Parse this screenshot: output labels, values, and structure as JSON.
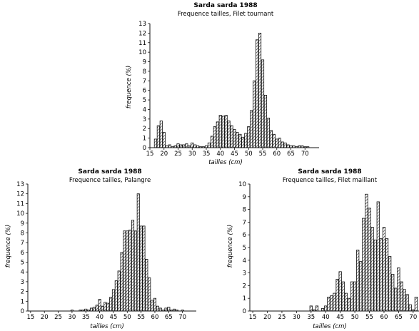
{
  "chart_data": [
    {
      "type": "bar",
      "title": "Sarda sarda 1988",
      "subtitle": "Frequence tailles, Filet tournant",
      "xlabel": "tailles (cm)",
      "ylabel": "frequence (%)",
      "xlim": [
        15,
        75
      ],
      "ylim": [
        0,
        13
      ],
      "xticks": [
        15,
        20,
        25,
        30,
        35,
        40,
        45,
        50,
        55,
        60,
        65,
        70
      ],
      "yticks": [
        0,
        1,
        2,
        3,
        4,
        5,
        6,
        7,
        8,
        9,
        10,
        11,
        12,
        13
      ],
      "x": [
        17,
        18,
        19,
        20,
        21,
        22,
        23,
        24,
        25,
        26,
        27,
        28,
        29,
        30,
        31,
        32,
        33,
        34,
        35,
        36,
        37,
        38,
        39,
        40,
        41,
        42,
        43,
        44,
        45,
        46,
        47,
        48,
        49,
        50,
        51,
        52,
        53,
        54,
        55,
        56,
        57,
        58,
        59,
        60,
        61,
        62,
        63,
        64,
        65,
        66,
        67,
        68,
        69,
        70,
        71
      ],
      "values": [
        0.9,
        2.3,
        2.8,
        1.6,
        0.2,
        0.3,
        0.1,
        0.2,
        0.4,
        0.3,
        0.3,
        0.4,
        0.2,
        0.5,
        0.3,
        0.2,
        0.1,
        0.1,
        0.2,
        0.5,
        1.2,
        2.2,
        2.7,
        3.4,
        3.3,
        3.4,
        2.8,
        2.3,
        1.9,
        1.6,
        1.4,
        1.1,
        1.5,
        2.2,
        3.9,
        7.0,
        11.3,
        12.0,
        9.2,
        5.5,
        3.1,
        1.8,
        1.4,
        0.9,
        1.0,
        0.6,
        0.5,
        0.3,
        0.2,
        0.2,
        0.1,
        0.2,
        0.2,
        0.1,
        0.1
      ]
    },
    {
      "type": "bar",
      "title": "Sarda sarda 1988",
      "subtitle": "Frequence tailles, Palangre",
      "xlabel": "tailles (cm)",
      "ylabel": "frequence (%)",
      "xlim": [
        14,
        75
      ],
      "ylim": [
        0,
        13
      ],
      "xticks": [
        15,
        20,
        25,
        30,
        35,
        40,
        45,
        50,
        55,
        60,
        65,
        70
      ],
      "yticks": [
        0,
        1,
        2,
        3,
        4,
        5,
        6,
        7,
        8,
        9,
        10,
        11,
        12,
        13
      ],
      "x": [
        30,
        33,
        34,
        35,
        36,
        37,
        38,
        39,
        40,
        41,
        42,
        43,
        44,
        45,
        46,
        47,
        48,
        49,
        50,
        51,
        52,
        53,
        54,
        55,
        56,
        57,
        58,
        59,
        60,
        61,
        62,
        63,
        64,
        65,
        66,
        67,
        68,
        70
      ],
      "values": [
        0.1,
        0.1,
        0.1,
        0.2,
        0.1,
        0.3,
        0.4,
        0.6,
        1.2,
        0.5,
        0.9,
        0.8,
        1.4,
        2.2,
        3.1,
        4.1,
        6.0,
        8.2,
        8.2,
        8.3,
        9.3,
        8.2,
        12.0,
        8.7,
        8.7,
        5.3,
        3.4,
        1.1,
        1.3,
        0.5,
        0.3,
        0.1,
        0.3,
        0.4,
        0.1,
        0.2,
        0.1,
        0.1
      ]
    },
    {
      "type": "bar",
      "title": "Sarda sarda 1988",
      "subtitle": "Frequence tailles, Filet maillant",
      "xlabel": "tailles (cm)",
      "ylabel": "frequence (%)",
      "xlim": [
        14,
        72
      ],
      "ylim": [
        0,
        10
      ],
      "xticks": [
        15,
        20,
        25,
        30,
        35,
        40,
        45,
        50,
        55,
        60,
        65,
        70
      ],
      "yticks": [
        0,
        1,
        2,
        3,
        4,
        5,
        6,
        7,
        8,
        9,
        10
      ],
      "x": [
        35,
        36,
        37,
        38,
        39,
        40,
        41,
        42,
        43,
        44,
        45,
        46,
        47,
        48,
        49,
        50,
        51,
        52,
        53,
        54,
        55,
        56,
        57,
        58,
        59,
        60,
        61,
        62,
        63,
        64,
        65,
        66,
        67,
        68,
        69,
        70,
        71
      ],
      "values": [
        0.4,
        0.1,
        0.4,
        0.0,
        0.2,
        0.4,
        1.1,
        1.2,
        1.4,
        2.5,
        3.1,
        2.3,
        1.4,
        1.0,
        2.3,
        2.3,
        4.8,
        3.9,
        7.3,
        9.2,
        8.1,
        6.6,
        5.6,
        8.6,
        5.7,
        6.6,
        5.7,
        4.3,
        2.9,
        1.8,
        3.4,
        2.3,
        1.7,
        1.3,
        0.5,
        0.1,
        1.1
      ]
    }
  ]
}
